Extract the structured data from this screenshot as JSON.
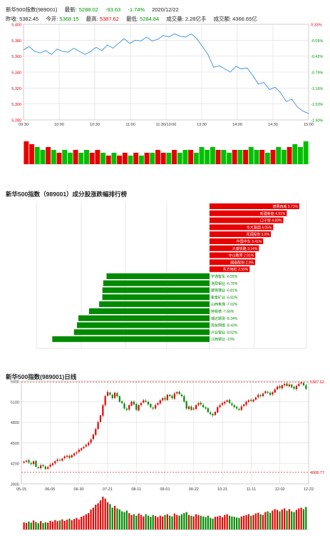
{
  "header": {
    "name": "新华500指数(989001)",
    "latest_label": "最新:",
    "latest_value": "5288.02",
    "change": "-93.63",
    "change_pct": "-1.74%",
    "date": "2020/12/22",
    "prev_close_label": "昨收:",
    "prev_close": "5382.45",
    "open_label": "今开:",
    "open": "5368.15",
    "high_label": "最高:",
    "high": "5387.62",
    "low_label": "最低:",
    "low": "5284.84",
    "volume_label": "成交量:",
    "volume": "2.28亿手",
    "amount_label": "成交额:",
    "amount": "4366.65亿"
  },
  "section2_title": "新华500指数（989001）成分股涨跌幅排行榜",
  "section3_title": "新华500指数(989001)日线",
  "chart_data": [
    {
      "type": "line",
      "title": "",
      "x_ticks": [
        "09:30",
        "10:00",
        "10:30",
        "11:00",
        "11:30/13:00",
        "13:30",
        "14:00",
        "14:30",
        "15:00"
      ],
      "y_ticks": [
        "5,400",
        "5,380",
        "5,360",
        "5,340",
        "5,320",
        "5,300",
        "5,280"
      ],
      "y_right_ticks": [
        "0.33%",
        "-0.05%",
        "-0.42%",
        "-0.79%",
        "-1.16%",
        "-1.53%",
        "-1.90%"
      ],
      "ylim": [
        5280,
        5400
      ],
      "prev_close": 5382.45,
      "price": [
        5368,
        5372,
        5366,
        5364,
        5367,
        5362,
        5369,
        5366,
        5365,
        5370,
        5366,
        5362,
        5366,
        5371,
        5367,
        5374,
        5370,
        5376,
        5382,
        5376,
        5380,
        5379,
        5384,
        5379,
        5381,
        5386,
        5384,
        5388,
        5385,
        5384,
        5388,
        5382,
        5372,
        5362,
        5346,
        5348,
        5344,
        5340,
        5347,
        5344,
        5345,
        5336,
        5325,
        5327,
        5318,
        5321,
        5314,
        5303,
        5306,
        5296,
        5291,
        5288
      ],
      "volume": [
        8,
        7,
        6,
        5,
        6,
        5,
        4,
        5,
        4,
        5,
        4,
        5,
        4,
        5,
        4,
        3,
        4,
        3,
        4,
        3,
        4,
        3,
        4,
        4,
        5,
        4,
        4,
        5,
        4,
        5,
        5,
        4,
        6,
        5,
        6,
        5,
        5,
        4,
        5,
        5,
        5,
        6,
        5,
        5,
        4,
        5,
        6,
        5,
        6,
        7,
        6,
        8
      ],
      "grid": true
    },
    {
      "type": "bar",
      "title": "新华500指数（989001）成分股涨跌幅排行榜",
      "items": [
        {
          "name": "德赛西威",
          "value": 5.71
        },
        {
          "name": "新疆新能",
          "value": 4.91
        },
        {
          "name": "口子窖",
          "value": 4.69
        },
        {
          "name": "华大基因",
          "value": 4.05
        },
        {
          "name": "泽润股份",
          "value": 3.9
        },
        {
          "name": "中国中车",
          "value": 3.41
        },
        {
          "name": "大秦铁路",
          "value": 3.14
        },
        {
          "name": "中山教育",
          "value": 2.91
        },
        {
          "name": "国泰股份",
          "value": 2.9
        },
        {
          "name": "东方雨虹",
          "value": 2.55
        },
        {
          "name": "宇通客车",
          "value": -6.55
        },
        {
          "name": "洛阳钼业",
          "value": -6.76
        },
        {
          "name": "赣锋锂业",
          "value": -6.81
        },
        {
          "name": "紫金矿业",
          "value": -6.82
        },
        {
          "name": "山西焦煤",
          "value": -7.02
        },
        {
          "name": "特锐德",
          "value": -7.66
        },
        {
          "name": "瑞达期货",
          "value": -8.34
        },
        {
          "name": "用友网络",
          "value": -8.43
        },
        {
          "name": "兴业银业",
          "value": -8.62
        },
        {
          "name": "江西铜业",
          "value": -10
        }
      ],
      "colors": {
        "up": "#e60000",
        "down": "#008a00"
      }
    },
    {
      "type": "candlestick",
      "title": "新华500指数(989001)日线",
      "x_ticks": [
        "05-15",
        "06-05",
        "06-30",
        "07-21",
        "08-11",
        "09-01",
        "09-22",
        "10-21",
        "11-11",
        "12-02",
        "12-22"
      ],
      "y_ticks": [
        "5400",
        "5100",
        "4800",
        "4500",
        "4200",
        "3900"
      ],
      "ylim": [
        3900,
        5400
      ],
      "hline_high": "5387.62",
      "hline_low": "4068.77",
      "close": [
        4225,
        4240,
        4210,
        4190,
        4230,
        4150,
        4130,
        4170,
        4160,
        4120,
        4145,
        4180,
        4200,
        4230,
        4255,
        4240,
        4270,
        4300,
        4310,
        4280,
        4320,
        4345,
        4360,
        4400,
        4420,
        4440,
        4470,
        4500,
        4550,
        4620,
        4700,
        4800,
        4900,
        5050,
        5180,
        5240,
        5200,
        5150,
        5230,
        5180,
        5100,
        5080,
        5000,
        4980,
        5050,
        5100,
        5060,
        4980,
        5050,
        5080,
        5120,
        5100,
        5060,
        5020,
        5000,
        5050,
        5080,
        5120,
        5150,
        5130,
        5200,
        5180,
        5150,
        5220,
        5240,
        5210,
        5180,
        5100,
        5000,
        5030,
        4980,
        5000,
        5050,
        5080,
        5060,
        5020,
        5000,
        4950,
        4920,
        4900,
        4950,
        5020,
        5050,
        5080,
        5100,
        5120,
        5080,
        5050,
        5020,
        5000,
        4980,
        5030,
        5060,
        5100,
        5120,
        5110,
        5130,
        5160,
        5200,
        5180,
        5220,
        5250,
        5230,
        5200,
        5240,
        5280,
        5320,
        5300,
        5340,
        5360,
        5330,
        5350,
        5310,
        5290,
        5330,
        5360,
        5380,
        5340,
        5288
      ],
      "volume": [
        20,
        18,
        22,
        19,
        25,
        21,
        17,
        23,
        18,
        20,
        19,
        24,
        22,
        26,
        23,
        25,
        28,
        24,
        27,
        30,
        26,
        29,
        32,
        28,
        35,
        38,
        42,
        45,
        55,
        60,
        68,
        72,
        80,
        90,
        85,
        75,
        70,
        60,
        65,
        58,
        55,
        50,
        48,
        52,
        45,
        40,
        42,
        38,
        44,
        40,
        36,
        42,
        38,
        35,
        40,
        37,
        34,
        38,
        36,
        40,
        42,
        38,
        36,
        44,
        40,
        38,
        42,
        45,
        48,
        40,
        38,
        36,
        42,
        40,
        38,
        36,
        34,
        38,
        32,
        30,
        35,
        36,
        38,
        34,
        40,
        42,
        38,
        36,
        35,
        33,
        32,
        36,
        38,
        40,
        42,
        38,
        40,
        44,
        46,
        42,
        40,
        48,
        50,
        46,
        52,
        56,
        54,
        50,
        55,
        58,
        52,
        56,
        50,
        48,
        54,
        58,
        60,
        56,
        62
      ],
      "up_color": "#e60000",
      "down_color": "#008a00"
    }
  ]
}
